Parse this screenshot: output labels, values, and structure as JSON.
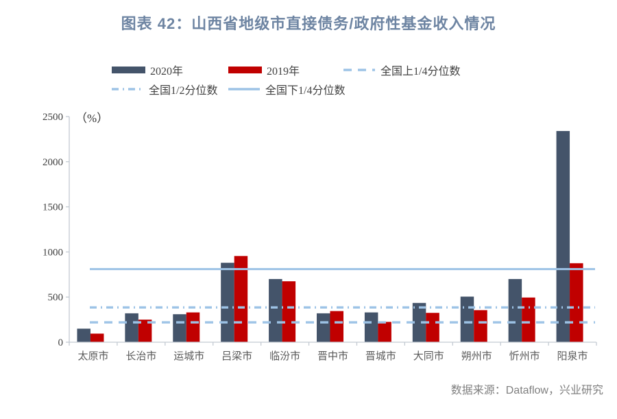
{
  "title": "图表 42：山西省地级市直接债务/政府性基金收入情况",
  "source": "数据来源：Dataflow，兴业研究",
  "colors": {
    "title": "#6d84a2",
    "series_2020": "#44546a",
    "series_2019": "#c00000",
    "reference_line": "#9dc3e6",
    "axis": "#c3cad2",
    "y_tick_label": "#404040",
    "category_label": "#595959",
    "source_text": "#7f7f7f"
  },
  "chart_data": {
    "type": "bar",
    "title": "图表 42：山西省地级市直接债务/政府性基金收入情况",
    "unit": "（%）",
    "categories": [
      "太原市",
      "长治市",
      "运城市",
      "吕梁市",
      "临汾市",
      "晋中市",
      "晋城市",
      "大同市",
      "朔州市",
      "忻州市",
      "阳泉市"
    ],
    "series": [
      {
        "name": "2020年",
        "color": "#44546a",
        "values": [
          150,
          320,
          310,
          880,
          700,
          320,
          330,
          435,
          505,
          700,
          2340
        ]
      },
      {
        "name": "2019年",
        "color": "#c00000",
        "values": [
          95,
          250,
          330,
          955,
          675,
          345,
          225,
          325,
          355,
          495,
          875
        ]
      }
    ],
    "reference_lines": [
      {
        "name": "全国上1/4分位数",
        "style": "dashed",
        "value": 220
      },
      {
        "name": "全国1/2分位数",
        "style": "dashdot",
        "value": 385
      },
      {
        "name": "全国下1/4分位数",
        "style": "solid",
        "value": 810
      }
    ],
    "line_color": "#9dc3e6",
    "ylim": [
      0,
      2500
    ],
    "yticks": [
      0,
      500,
      1000,
      1500,
      2000,
      2500
    ],
    "grid": false,
    "legend_position": "top"
  }
}
